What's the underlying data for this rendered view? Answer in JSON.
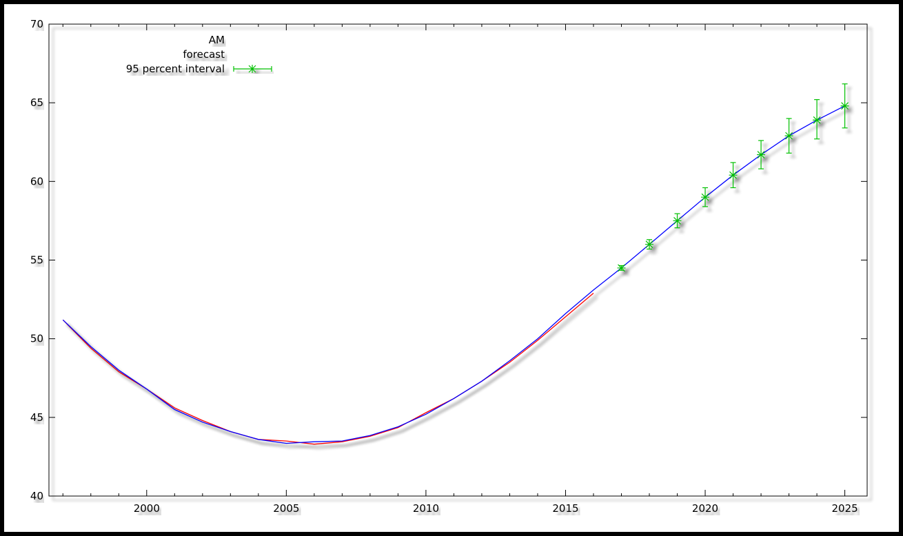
{
  "chart_data": {
    "type": "line",
    "title": "",
    "xlabel": "",
    "ylabel": "",
    "xlim": [
      1996.5,
      2025.8
    ],
    "ylim": [
      40,
      70
    ],
    "x_ticks": [
      2000,
      2005,
      2010,
      2015,
      2020,
      2025
    ],
    "y_ticks": [
      40,
      45,
      50,
      55,
      60,
      65,
      70
    ],
    "grid": false,
    "legend_position": "top-left",
    "series": [
      {
        "name": "AM",
        "color": "#ff0000",
        "kind": "line",
        "x": [
          1997,
          1998,
          1999,
          2000,
          2001,
          2002,
          2003,
          2004,
          2005,
          2006,
          2007,
          2008,
          2009,
          2010,
          2011,
          2012,
          2013,
          2014,
          2015,
          2016
        ],
        "values": [
          51.2,
          49.4,
          47.9,
          46.8,
          45.6,
          44.8,
          44.1,
          43.6,
          43.5,
          43.3,
          43.45,
          43.8,
          44.35,
          45.3,
          46.2,
          47.3,
          48.5,
          49.9,
          51.4,
          52.9
        ]
      },
      {
        "name": "forecast",
        "color": "#0000ff",
        "kind": "line",
        "x": [
          1997,
          1998,
          1999,
          2000,
          2001,
          2002,
          2003,
          2004,
          2005,
          2006,
          2007,
          2008,
          2009,
          2010,
          2011,
          2012,
          2013,
          2014,
          2015,
          2016,
          2017,
          2018,
          2019,
          2020,
          2021,
          2022,
          2023,
          2024,
          2025
        ],
        "values": [
          51.2,
          49.5,
          48.0,
          46.8,
          45.5,
          44.7,
          44.1,
          43.6,
          43.35,
          43.45,
          43.5,
          43.85,
          44.4,
          45.2,
          46.2,
          47.3,
          48.6,
          50.0,
          51.6,
          53.1,
          54.5,
          56.0,
          57.5,
          59.0,
          60.4,
          61.7,
          62.9,
          63.9,
          64.8
        ]
      },
      {
        "name": "95 percent interval",
        "color": "#00c000",
        "kind": "errorbar",
        "x": [
          2017,
          2018,
          2019,
          2020,
          2021,
          2022,
          2023,
          2024,
          2025
        ],
        "values": [
          54.5,
          56.0,
          57.5,
          59.0,
          60.4,
          61.7,
          62.9,
          63.9,
          64.8
        ],
        "lower": [
          54.35,
          55.7,
          57.05,
          58.4,
          59.6,
          60.8,
          61.8,
          62.7,
          63.4
        ],
        "upper": [
          54.65,
          56.3,
          57.95,
          59.6,
          61.2,
          62.6,
          64.0,
          65.2,
          66.2
        ]
      }
    ]
  }
}
